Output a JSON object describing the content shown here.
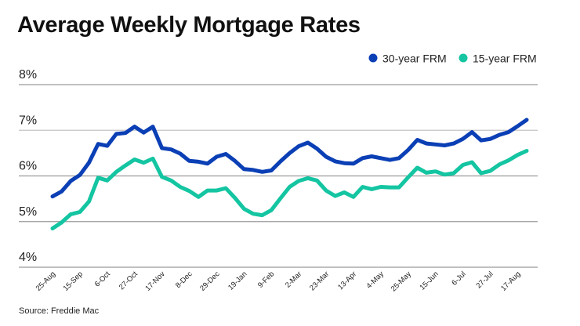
{
  "title": "Average Weekly Mortgage Rates",
  "source": "Source: Freddie Mac",
  "chart_data": {
    "type": "line",
    "title": "Average Weekly Mortgage Rates",
    "ylim": [
      4,
      8
    ],
    "yticks": [
      4,
      5,
      6,
      7,
      8
    ],
    "ytick_labels": [
      "4%",
      "5%",
      "6%",
      "7%",
      "8%"
    ],
    "grid": "horizontal",
    "legend_position": "top-right",
    "x_tick_labels": [
      "25-Aug",
      "15-Sep",
      "6-Oct",
      "27-Oct",
      "17-Nov",
      "8-Dec",
      "29-Dec",
      "19-Jan",
      "9-Feb",
      "2-Mar",
      "23-Mar",
      "13-Apr",
      "4-May",
      "25-May",
      "15-Jun",
      "6-Jul",
      "27-Jul",
      "17-Aug"
    ],
    "x_tick_every": 3,
    "series": [
      {
        "name": "30-year FRM",
        "color": "#0b3fb5",
        "values": [
          5.55,
          5.66,
          5.89,
          6.02,
          6.29,
          6.7,
          6.66,
          6.92,
          6.94,
          7.08,
          6.95,
          7.08,
          6.61,
          6.58,
          6.49,
          6.33,
          6.31,
          6.27,
          6.42,
          6.48,
          6.33,
          6.15,
          6.13,
          6.09,
          6.12,
          6.32,
          6.5,
          6.65,
          6.73,
          6.6,
          6.42,
          6.32,
          6.28,
          6.27,
          6.39,
          6.43,
          6.39,
          6.35,
          6.39,
          6.57,
          6.79,
          6.71,
          6.69,
          6.67,
          6.71,
          6.81,
          6.96,
          6.78,
          6.81,
          6.9,
          6.96,
          7.09,
          7.23
        ]
      },
      {
        "name": "15-year FRM",
        "color": "#14c5a2",
        "values": [
          4.85,
          4.98,
          5.16,
          5.21,
          5.44,
          5.96,
          5.9,
          6.09,
          6.23,
          6.36,
          6.29,
          6.38,
          5.98,
          5.9,
          5.76,
          5.67,
          5.54,
          5.68,
          5.68,
          5.73,
          5.52,
          5.28,
          5.17,
          5.14,
          5.25,
          5.51,
          5.76,
          5.89,
          5.95,
          5.9,
          5.68,
          5.56,
          5.64,
          5.54,
          5.76,
          5.71,
          5.76,
          5.75,
          5.75,
          5.97,
          6.18,
          6.07,
          6.1,
          6.03,
          6.06,
          6.24,
          6.3,
          6.06,
          6.11,
          6.25,
          6.34,
          6.46,
          6.55
        ]
      }
    ]
  }
}
